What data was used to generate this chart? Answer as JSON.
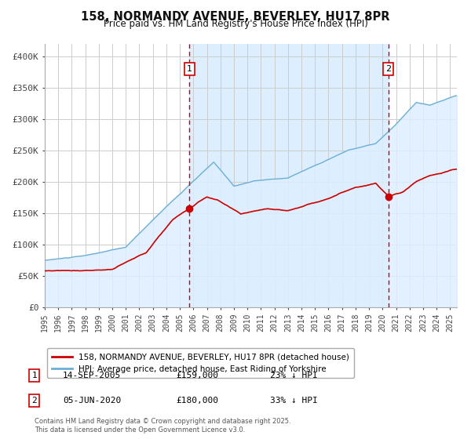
{
  "title": "158, NORMANDY AVENUE, BEVERLEY, HU17 8PR",
  "subtitle": "Price paid vs. HM Land Registry's House Price Index (HPI)",
  "legend_property": "158, NORMANDY AVENUE, BEVERLEY, HU17 8PR (detached house)",
  "legend_hpi": "HPI: Average price, detached house, East Riding of Yorkshire",
  "footnote": "Contains HM Land Registry data © Crown copyright and database right 2025.\nThis data is licensed under the Open Government Licence v3.0.",
  "sale1_date": "14-SEP-2005",
  "sale1_price": 159000,
  "sale1_pct": "23% ↓ HPI",
  "sale2_date": "05-JUN-2020",
  "sale2_price": 180000,
  "sale2_pct": "33% ↓ HPI",
  "sale1_year": 2005.71,
  "sale2_year": 2020.43,
  "ylim_min": 0,
  "ylim_max": 420000,
  "ytick_vals": [
    0,
    50000,
    100000,
    150000,
    200000,
    250000,
    300000,
    350000,
    400000
  ],
  "ytick_labels": [
    "£0",
    "£50K",
    "£100K",
    "£150K",
    "£200K",
    "£250K",
    "£300K",
    "£350K",
    "£400K"
  ],
  "xmin": 1995,
  "xmax": 2025.5,
  "property_color": "#cc0000",
  "hpi_color": "#6baed6",
  "hpi_fill_color": "#ddeeff",
  "vline_color": "#cc0000",
  "bg_color": "#ffffff",
  "grid_color": "#cccccc",
  "highlight_bg": "#ddeeff",
  "label1": "1",
  "label2": "2"
}
